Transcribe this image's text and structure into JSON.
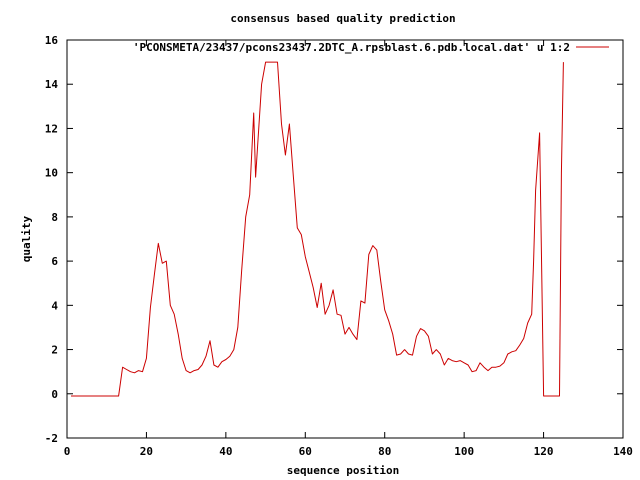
{
  "chart_data": {
    "type": "line",
    "title": "consensus based quality prediction",
    "xlabel": "sequence position",
    "ylabel": "quality",
    "xlim": [
      0,
      140
    ],
    "ylim": [
      -2,
      16
    ],
    "xticks": [
      0,
      20,
      40,
      60,
      80,
      100,
      120,
      140
    ],
    "yticks": [
      -2,
      0,
      2,
      4,
      6,
      8,
      10,
      12,
      14,
      16
    ],
    "grid": false,
    "legend_position": "top-right",
    "series": [
      {
        "name": "'PCONSMETA/23437/pcons23437.2DTC_A.rpsblast.6.pdb.local.dat' u 1:2",
        "color": "#cc0000",
        "points": [
          [
            1,
            -0.1
          ],
          [
            13,
            -0.1
          ],
          [
            14,
            1.2
          ],
          [
            15,
            1.1
          ],
          [
            16,
            1.0
          ],
          [
            17,
            0.95
          ],
          [
            18,
            1.05
          ],
          [
            19,
            1.0
          ],
          [
            20,
            1.6
          ],
          [
            21,
            3.9
          ],
          [
            22,
            5.4
          ],
          [
            23,
            6.8
          ],
          [
            24,
            5.9
          ],
          [
            25,
            6.0
          ],
          [
            26,
            4.0
          ],
          [
            27,
            3.6
          ],
          [
            28,
            2.7
          ],
          [
            29,
            1.6
          ],
          [
            30,
            1.05
          ],
          [
            31,
            0.95
          ],
          [
            32,
            1.05
          ],
          [
            33,
            1.1
          ],
          [
            34,
            1.3
          ],
          [
            35,
            1.7
          ],
          [
            36,
            2.4
          ],
          [
            37,
            1.3
          ],
          [
            38,
            1.2
          ],
          [
            39,
            1.45
          ],
          [
            40,
            1.55
          ],
          [
            41,
            1.7
          ],
          [
            42,
            2.0
          ],
          [
            43,
            3.0
          ],
          [
            44,
            5.6
          ],
          [
            45,
            8.0
          ],
          [
            46,
            9.0
          ],
          [
            47,
            12.7
          ],
          [
            47.5,
            9.8
          ],
          [
            48,
            11.2
          ],
          [
            49,
            14.0
          ],
          [
            50,
            15.0
          ],
          [
            53,
            15.0
          ],
          [
            54,
            12.2
          ],
          [
            55,
            10.8
          ],
          [
            56,
            12.2
          ],
          [
            57,
            9.8
          ],
          [
            58,
            7.5
          ],
          [
            59,
            7.2
          ],
          [
            60,
            6.2
          ],
          [
            61,
            5.5
          ],
          [
            62,
            4.8
          ],
          [
            63,
            3.9
          ],
          [
            64,
            5.0
          ],
          [
            65,
            3.6
          ],
          [
            66,
            4.0
          ],
          [
            67,
            4.7
          ],
          [
            68,
            3.6
          ],
          [
            69,
            3.55
          ],
          [
            70,
            2.7
          ],
          [
            71,
            3.0
          ],
          [
            72,
            2.7
          ],
          [
            73,
            2.45
          ],
          [
            74,
            4.2
          ],
          [
            75,
            4.1
          ],
          [
            76,
            6.3
          ],
          [
            77,
            6.7
          ],
          [
            78,
            6.5
          ],
          [
            79,
            5.1
          ],
          [
            80,
            3.8
          ],
          [
            81,
            3.3
          ],
          [
            82,
            2.7
          ],
          [
            83,
            1.75
          ],
          [
            84,
            1.8
          ],
          [
            85,
            2.0
          ],
          [
            86,
            1.8
          ],
          [
            87,
            1.75
          ],
          [
            88,
            2.6
          ],
          [
            89,
            2.95
          ],
          [
            90,
            2.85
          ],
          [
            91,
            2.6
          ],
          [
            92,
            1.8
          ],
          [
            93,
            2.0
          ],
          [
            94,
            1.8
          ],
          [
            95,
            1.3
          ],
          [
            96,
            1.6
          ],
          [
            97,
            1.5
          ],
          [
            98,
            1.45
          ],
          [
            99,
            1.5
          ],
          [
            100,
            1.4
          ],
          [
            101,
            1.3
          ],
          [
            102,
            1.0
          ],
          [
            103,
            1.05
          ],
          [
            104,
            1.4
          ],
          [
            105,
            1.2
          ],
          [
            106,
            1.05
          ],
          [
            107,
            1.2
          ],
          [
            108,
            1.2
          ],
          [
            109,
            1.25
          ],
          [
            110,
            1.4
          ],
          [
            111,
            1.8
          ],
          [
            112,
            1.9
          ],
          [
            113,
            1.95
          ],
          [
            114,
            2.2
          ],
          [
            115,
            2.5
          ],
          [
            116,
            3.2
          ],
          [
            117,
            3.6
          ],
          [
            117.5,
            6.0
          ],
          [
            118,
            9.2
          ],
          [
            119,
            11.8
          ],
          [
            120,
            -0.1
          ],
          [
            124,
            -0.1
          ],
          [
            124.5,
            10.0
          ],
          [
            125,
            15.0
          ]
        ]
      }
    ]
  }
}
